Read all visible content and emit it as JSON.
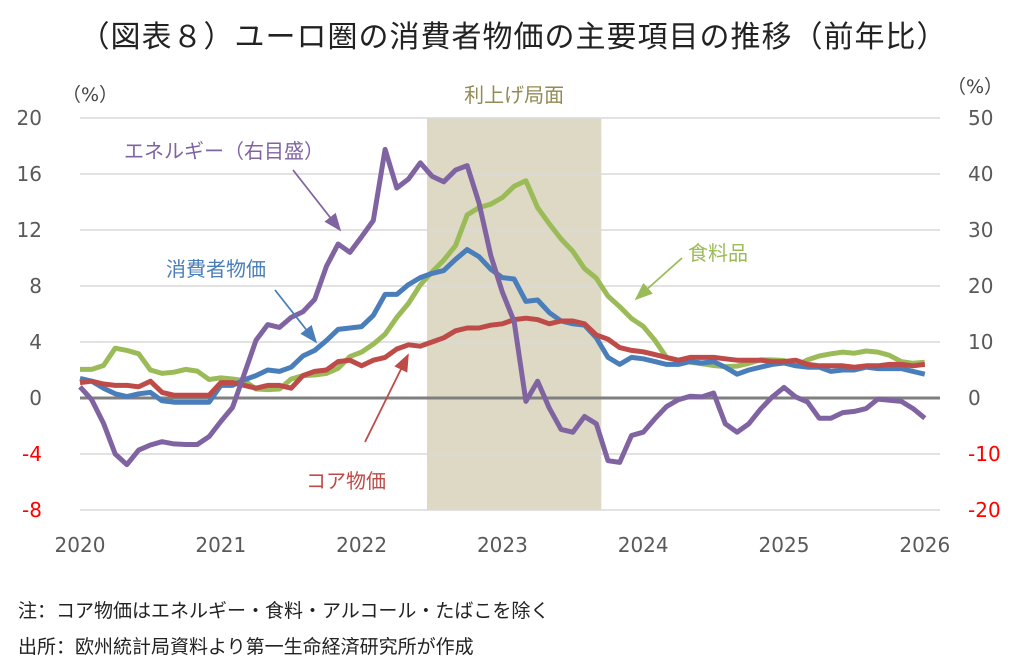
{
  "title": "（図表８）ユーロ圏の消費者物価の主要項目の推移（前年比）",
  "notes": {
    "note": "注：コア物価はエネルギー・食料・アルコール・たばこを除く",
    "source": "出所：欧州統計局資料より第一生命経済研究所が作成"
  },
  "chart_data": {
    "type": "line",
    "title": "（図表８）ユーロ圏の消費者物価の主要項目の推移（前年比）",
    "xlabel": "",
    "ylabel_left": "（%）",
    "ylabel_right": "（%）",
    "x_start": "2020-01",
    "x_end": "2026-01",
    "frequency": "monthly",
    "x_ticks": [
      "2020",
      "2021",
      "2022",
      "2023",
      "2024",
      "2025",
      "2026"
    ],
    "y_left": {
      "lim": [
        -8,
        20
      ],
      "ticks": [
        "20",
        "16",
        "12",
        "8",
        "4",
        "0",
        "-4",
        "-8"
      ],
      "step": 4
    },
    "y_right": {
      "lim": [
        -20,
        50
      ],
      "ticks": [
        "50",
        "40",
        "30",
        "20",
        "10",
        "0",
        "-10",
        "-20"
      ],
      "step": 10
    },
    "negative_tick_color": "#ff0000",
    "grid": true,
    "shaded_period": {
      "label": "利上げ局面",
      "start": "2022-07",
      "end": "2023-09",
      "color": "#ddd9c4",
      "label_color": "#948a54"
    },
    "series": [
      {
        "name": "消費者物価",
        "axis": "left",
        "color": "#4a7ebb",
        "label": "消費者物価",
        "values": [
          1.4,
          1.2,
          0.7,
          0.3,
          0.1,
          0.3,
          0.4,
          -0.2,
          -0.3,
          -0.3,
          -0.3,
          -0.3,
          0.9,
          0.9,
          1.3,
          1.6,
          2.0,
          1.9,
          2.2,
          3.0,
          3.4,
          4.1,
          4.9,
          5.0,
          5.1,
          5.9,
          7.4,
          7.4,
          8.1,
          8.6,
          8.9,
          9.1,
          9.9,
          10.6,
          10.1,
          9.2,
          8.6,
          8.5,
          6.9,
          7.0,
          6.1,
          5.5,
          5.3,
          5.2,
          4.3,
          2.9,
          2.4,
          2.9,
          2.8,
          2.6,
          2.4,
          2.4,
          2.6,
          2.5,
          2.6,
          2.2,
          1.7,
          2.0,
          2.2,
          2.4,
          2.5,
          2.3,
          2.2,
          2.2,
          1.9,
          2.0,
          2.0,
          2.2,
          2.1,
          2.1,
          2.1,
          1.9,
          1.7
        ]
      },
      {
        "name": "コア物価",
        "axis": "left",
        "color": "#be4b48",
        "label": "コア物価",
        "values": [
          1.1,
          1.2,
          1.0,
          0.9,
          0.9,
          0.8,
          1.2,
          0.4,
          0.2,
          0.2,
          0.2,
          0.2,
          1.1,
          1.1,
          0.9,
          0.7,
          0.9,
          0.9,
          0.7,
          1.6,
          1.9,
          2.0,
          2.6,
          2.7,
          2.3,
          2.7,
          2.9,
          3.5,
          3.8,
          3.7,
          4.0,
          4.3,
          4.8,
          5.0,
          5.0,
          5.2,
          5.3,
          5.6,
          5.7,
          5.6,
          5.3,
          5.5,
          5.5,
          5.3,
          4.5,
          4.2,
          3.6,
          3.4,
          3.3,
          3.1,
          2.9,
          2.7,
          2.9,
          2.9,
          2.9,
          2.8,
          2.7,
          2.7,
          2.7,
          2.6,
          2.6,
          2.7,
          2.4,
          2.3,
          2.3,
          2.3,
          2.2,
          2.3,
          2.3,
          2.4,
          2.4,
          2.3,
          2.4
        ]
      },
      {
        "name": "食料品",
        "axis": "right",
        "color": "#9bbb59",
        "label": "食料品",
        "values": [
          5.1,
          5.1,
          5.8,
          8.9,
          8.5,
          7.9,
          5.0,
          4.4,
          4.6,
          5.1,
          4.8,
          3.3,
          3.6,
          3.4,
          3.1,
          1.6,
          1.5,
          1.6,
          3.4,
          4.0,
          4.1,
          4.4,
          5.3,
          7.4,
          8.2,
          9.6,
          11.4,
          14.4,
          16.9,
          20.2,
          22.5,
          24.6,
          27.2,
          32.7,
          34.0,
          34.6,
          35.8,
          37.8,
          38.8,
          34.0,
          31.1,
          28.4,
          26.2,
          23.1,
          21.4,
          18.2,
          16.3,
          14.2,
          12.8,
          10.3,
          7.2,
          6.7,
          6.4,
          6.1,
          5.8,
          5.6,
          5.7,
          6.2,
          6.8,
          6.8,
          6.7,
          5.8,
          6.8,
          7.5,
          7.9,
          8.2,
          8.0,
          8.4,
          8.2,
          7.6,
          6.5,
          6.2,
          6.4
        ]
      },
      {
        "name": "エネルギー（右目盛）",
        "axis": "right",
        "color": "#8064a2",
        "label": "エネルギー（右目盛）",
        "values": [
          2.0,
          -0.3,
          -4.5,
          -10.0,
          -11.9,
          -9.3,
          -8.4,
          -7.8,
          -8.2,
          -8.3,
          -8.3,
          -6.9,
          -4.2,
          -1.7,
          4.3,
          10.3,
          13.1,
          12.6,
          14.4,
          15.4,
          17.6,
          23.5,
          27.5,
          26.0,
          28.8,
          31.7,
          44.4,
          37.5,
          39.1,
          42.0,
          39.6,
          38.6,
          40.7,
          41.5,
          34.9,
          25.5,
          18.9,
          13.7,
          -0.6,
          3.0,
          -1.8,
          -5.6,
          -6.1,
          -3.3,
          -4.6,
          -11.2,
          -11.5,
          -6.7,
          -6.1,
          -3.7,
          -1.5,
          -0.3,
          0.3,
          0.2,
          0.9,
          -4.6,
          -6.1,
          -4.6,
          -2.0,
          0.2,
          1.9,
          0.2,
          -0.7,
          -3.6,
          -3.6,
          -2.6,
          -2.4,
          -1.9,
          -0.2,
          -0.4,
          -0.6,
          -1.9,
          -3.6
        ]
      }
    ]
  }
}
